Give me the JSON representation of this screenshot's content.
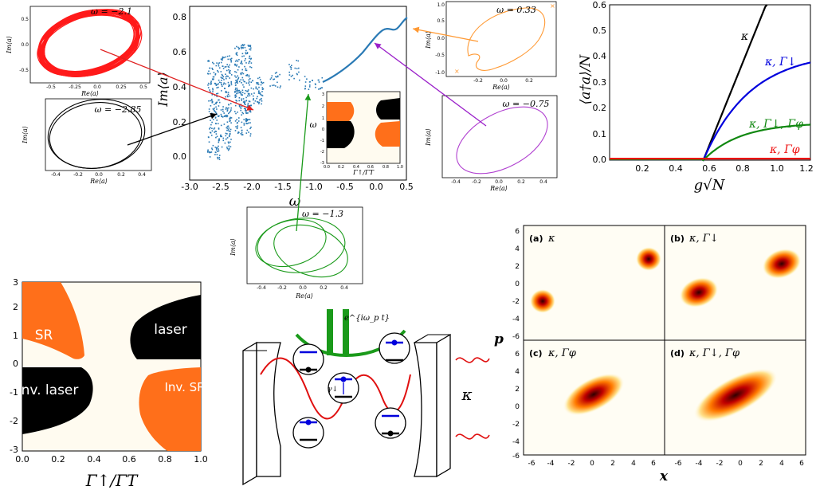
{
  "panels": {
    "main_scatter": {
      "xlabel": "ω",
      "ylabel": "Im⟨a⟩",
      "xticks": [
        "-3.0",
        "-2.5",
        "-2.0",
        "-1.5",
        "-1.0",
        "-0.5",
        "0.0",
        "0.5"
      ],
      "yticks": [
        "0.0",
        "0.2",
        "0.4",
        "0.6",
        "0.8"
      ]
    },
    "inset_phase": {
      "xlabel": "Γ↑/ΓT",
      "ylabel": "ω",
      "xticks": [
        "0.0",
        "0.2",
        "0.4",
        "0.6",
        "0.8",
        "1.0"
      ],
      "yticks": [
        "3",
        "2",
        "1",
        "0",
        "-1",
        "-2",
        "-3"
      ]
    },
    "orbit_red": {
      "label": "ω = −2.1",
      "xlabel": "Re⟨a⟩",
      "ylabel": "Im⟨a⟩",
      "xticks": [
        "-0.5",
        "-0.25",
        "0.0",
        "0.25",
        "0.5"
      ],
      "yticks": [
        "0.5",
        "0.0",
        "-0.5"
      ]
    },
    "orbit_black": {
      "label": "ω = −2.85",
      "xlabel": "Re⟨a⟩",
      "ylabel": "Im⟨a⟩",
      "xticks": [
        "-0.4",
        "-0.2",
        "0.0",
        "0.2",
        "0.4"
      ]
    },
    "orbit_orange": {
      "label": "ω = 0.33",
      "xlabel": "Re⟨a⟩",
      "ylabel": "Im⟨a⟩",
      "xticks": [
        "-0.2",
        "0.0",
        "0.2"
      ],
      "yticks": [
        "1.0",
        "0.5",
        "0.0",
        "-0.5",
        "-1.0"
      ]
    },
    "orbit_purple": {
      "label": "ω = −0.75",
      "xlabel": "Re⟨a⟩",
      "ylabel": "Im⟨a⟩",
      "xticks": [
        "-0.4",
        "-0.2",
        "0.0",
        "0.2",
        "0.4"
      ]
    },
    "orbit_green": {
      "label": "ω = −1.3",
      "xlabel": "Re⟨a⟩",
      "ylabel": "Im⟨a⟩",
      "xticks": [
        "-0.4",
        "-0.2",
        "0.0",
        "0.2",
        "0.4"
      ]
    },
    "photon_number": {
      "ylabel": "⟨a†a⟩/N",
      "xlabel": "g√N",
      "xticks": [
        "0.2",
        "0.4",
        "0.6",
        "0.8",
        "1.0",
        "1.2"
      ],
      "yticks": [
        "0.0",
        "0.1",
        "0.2",
        "0.3",
        "0.4",
        "0.5",
        "0.6"
      ],
      "legend": [
        {
          "label": "κ",
          "color": "#000000"
        },
        {
          "label": "κ, Γ↓",
          "color": "#0000dd"
        },
        {
          "label": "κ, Γ↓, Γφ",
          "color": "#118811"
        },
        {
          "label": "κ, Γφ",
          "color": "#ee1111"
        }
      ]
    },
    "phase_diagram": {
      "xlabel": "Γ↑/ΓT",
      "xticks": [
        "0.0",
        "0.2",
        "0.4",
        "0.6",
        "0.8",
        "1.0"
      ],
      "yticks": [
        "3",
        "2",
        "1",
        "0",
        "-1",
        "-2",
        "-3"
      ],
      "regions": [
        "SR",
        "laser",
        "Inv. laser",
        "Inv. SR"
      ],
      "colors": {
        "orange": "#ff6f1a",
        "black": "#000000",
        "bg": "#fffbf0"
      }
    },
    "cavity": {
      "pump_label": "e^{iω_p t}",
      "decay_label": "κ",
      "gamma_label": "γ↓"
    },
    "wigner": {
      "xlabel": "x",
      "ylabel": "p",
      "xticks": [
        "-6",
        "-4",
        "-2",
        "0",
        "2",
        "4",
        "6"
      ],
      "yticks": [
        "6",
        "4",
        "2",
        "0",
        "-2",
        "-4",
        "-6"
      ],
      "subpanels": [
        {
          "tag": "(a)",
          "label": "κ"
        },
        {
          "tag": "(b)",
          "label": "κ, Γ↓"
        },
        {
          "tag": "(c)",
          "label": "κ, Γφ"
        },
        {
          "tag": "(d)",
          "label": "κ, Γ↓, Γφ"
        }
      ]
    }
  }
}
